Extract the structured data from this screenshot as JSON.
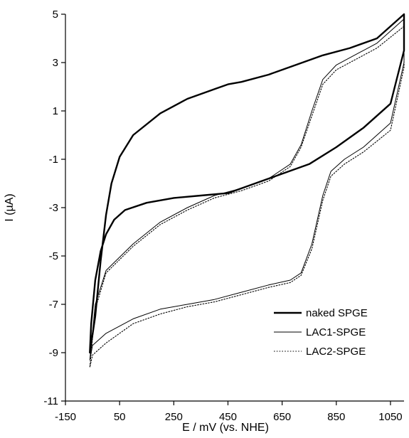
{
  "chart_data": {
    "type": "line",
    "xlabel": "E / mV (vs. NHE)",
    "ylabel": "I (µA)",
    "xlim": [
      -150,
      1100
    ],
    "ylim": [
      -11,
      5
    ],
    "xticks": [
      -150,
      50,
      250,
      450,
      650,
      850,
      1050
    ],
    "yticks": [
      5,
      3,
      1,
      -1,
      -3,
      -5,
      -7,
      -9,
      -11
    ],
    "grid": false,
    "legend_position": "bottom-right",
    "series": [
      {
        "name": "naked SPGE",
        "style": "thick-solid",
        "color": "#000000",
        "points": [
          [
            1100,
            5.0
          ],
          [
            1000,
            4.0
          ],
          [
            900,
            3.6
          ],
          [
            800,
            3.3
          ],
          [
            700,
            2.9
          ],
          [
            600,
            2.5
          ],
          [
            500,
            2.2
          ],
          [
            450,
            2.1
          ],
          [
            400,
            1.9
          ],
          [
            300,
            1.5
          ],
          [
            200,
            0.9
          ],
          [
            100,
            0.0
          ],
          [
            50,
            -0.9
          ],
          [
            20,
            -2.0
          ],
          [
            0,
            -3.3
          ],
          [
            -20,
            -5.2
          ],
          [
            -40,
            -7.5
          ],
          [
            -60,
            -9.0
          ],
          [
            -55,
            -7.8
          ],
          [
            -40,
            -6.0
          ],
          [
            -20,
            -4.8
          ],
          [
            0,
            -4.1
          ],
          [
            30,
            -3.5
          ],
          [
            70,
            -3.1
          ],
          [
            150,
            -2.8
          ],
          [
            250,
            -2.6
          ],
          [
            350,
            -2.5
          ],
          [
            450,
            -2.4
          ],
          [
            550,
            -2.0
          ],
          [
            650,
            -1.6
          ],
          [
            750,
            -1.2
          ],
          [
            850,
            -0.5
          ],
          [
            950,
            0.3
          ],
          [
            1050,
            1.3
          ],
          [
            1100,
            3.5
          ],
          [
            1100,
            5.0
          ]
        ]
      },
      {
        "name": "LAC1-SPGE",
        "style": "thin-solid",
        "color": "#000000",
        "points": [
          [
            1100,
            4.8
          ],
          [
            1000,
            3.8
          ],
          [
            900,
            3.2
          ],
          [
            850,
            2.9
          ],
          [
            800,
            2.3
          ],
          [
            760,
            1.0
          ],
          [
            720,
            -0.4
          ],
          [
            680,
            -1.2
          ],
          [
            600,
            -1.8
          ],
          [
            500,
            -2.2
          ],
          [
            400,
            -2.5
          ],
          [
            300,
            -3.0
          ],
          [
            200,
            -3.6
          ],
          [
            100,
            -4.5
          ],
          [
            0,
            -5.6
          ],
          [
            -40,
            -7.0
          ],
          [
            -60,
            -9.3
          ],
          [
            -50,
            -8.7
          ],
          [
            0,
            -8.2
          ],
          [
            100,
            -7.6
          ],
          [
            200,
            -7.2
          ],
          [
            300,
            -7.0
          ],
          [
            400,
            -6.8
          ],
          [
            500,
            -6.5
          ],
          [
            600,
            -6.2
          ],
          [
            680,
            -6.0
          ],
          [
            720,
            -5.7
          ],
          [
            760,
            -4.5
          ],
          [
            800,
            -2.5
          ],
          [
            830,
            -1.5
          ],
          [
            880,
            -1.0
          ],
          [
            950,
            -0.5
          ],
          [
            1050,
            0.5
          ],
          [
            1100,
            3.0
          ],
          [
            1100,
            4.8
          ]
        ]
      },
      {
        "name": "LAC2-SPGE",
        "style": "dotted",
        "color": "#000000",
        "points": [
          [
            1100,
            4.5
          ],
          [
            1000,
            3.6
          ],
          [
            900,
            3.0
          ],
          [
            850,
            2.7
          ],
          [
            800,
            2.1
          ],
          [
            760,
            0.8
          ],
          [
            720,
            -0.5
          ],
          [
            680,
            -1.3
          ],
          [
            600,
            -1.9
          ],
          [
            500,
            -2.3
          ],
          [
            400,
            -2.6
          ],
          [
            300,
            -3.1
          ],
          [
            200,
            -3.7
          ],
          [
            100,
            -4.6
          ],
          [
            0,
            -5.7
          ],
          [
            -40,
            -7.2
          ],
          [
            -60,
            -9.6
          ],
          [
            -50,
            -9.1
          ],
          [
            0,
            -8.6
          ],
          [
            100,
            -7.8
          ],
          [
            200,
            -7.4
          ],
          [
            300,
            -7.1
          ],
          [
            400,
            -6.9
          ],
          [
            500,
            -6.6
          ],
          [
            600,
            -6.3
          ],
          [
            680,
            -6.1
          ],
          [
            720,
            -5.8
          ],
          [
            760,
            -4.7
          ],
          [
            800,
            -2.7
          ],
          [
            830,
            -1.7
          ],
          [
            880,
            -1.2
          ],
          [
            950,
            -0.7
          ],
          [
            1050,
            0.2
          ],
          [
            1100,
            2.8
          ],
          [
            1100,
            4.5
          ]
        ]
      }
    ]
  }
}
